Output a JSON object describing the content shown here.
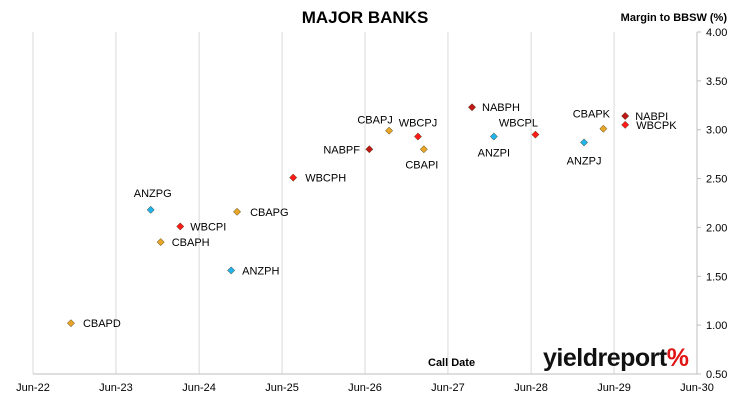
{
  "chart_data": {
    "type": "scatter",
    "title": "MAJOR BANKS",
    "ylabel": "Margin to BBSW (%)",
    "xlabel": "Call Date",
    "x_range": [
      "Jun-22",
      "Jun-30"
    ],
    "x_ticks": [
      "Jun-22",
      "Jun-23",
      "Jun-24",
      "Jun-25",
      "Jun-26",
      "Jun-27",
      "Jun-28",
      "Jun-29",
      "Jun-30"
    ],
    "ylim": [
      0.5,
      4.0
    ],
    "y_ticks": [
      "0.50",
      "1.00",
      "1.50",
      "2.00",
      "2.50",
      "3.00",
      "3.50",
      "4.00"
    ],
    "grid": "vertical",
    "y_axis_position": "right",
    "series": [
      {
        "color": "#e8a628",
        "points": [
          {
            "label": "CBAPD",
            "x": "2022-11-15",
            "y": 1.02
          },
          {
            "label": "CBAPH",
            "x": "2023-12-15",
            "y": 1.85
          },
          {
            "label": "CBAPG",
            "x": "2024-11-15",
            "y": 2.16
          },
          {
            "label": "CBAPJ",
            "x": "2026-09-15",
            "y": 2.99
          },
          {
            "label": "CBAPI",
            "x": "2027-02-15",
            "y": 2.8
          },
          {
            "label": "CBAPK",
            "x": "2029-04-15",
            "y": 3.01
          }
        ]
      },
      {
        "color": "#ff1a1a",
        "points": [
          {
            "label": "WBCPI",
            "x": "2024-03-10",
            "y": 2.01
          },
          {
            "label": "WBCPH",
            "x": "2025-07-20",
            "y": 2.51
          },
          {
            "label": "WBCPJ",
            "x": "2027-01-20",
            "y": 2.93
          },
          {
            "label": "WBCPL",
            "x": "2028-06-20",
            "y": 2.95
          },
          {
            "label": "WBCPK",
            "x": "2029-07-20",
            "y": 3.05
          }
        ]
      },
      {
        "color": "#1fb4ee",
        "points": [
          {
            "label": "ANZPG",
            "x": "2023-11-01",
            "y": 2.18
          },
          {
            "label": "ANZPH",
            "x": "2024-10-20",
            "y": 1.56
          },
          {
            "label": "ANZPI",
            "x": "2027-12-20",
            "y": 2.93
          },
          {
            "label": "ANZPJ",
            "x": "2029-01-20",
            "y": 2.87
          }
        ]
      },
      {
        "color": "#c01818",
        "points": [
          {
            "label": "NABPF",
            "x": "2026-06-20",
            "y": 2.8
          },
          {
            "label": "NABPH",
            "x": "2027-09-15",
            "y": 3.23
          },
          {
            "label": "NABPI",
            "x": "2029-07-20",
            "y": 3.14
          }
        ]
      }
    ]
  },
  "logo": {
    "main": "yieldreport",
    "mark": "%"
  }
}
